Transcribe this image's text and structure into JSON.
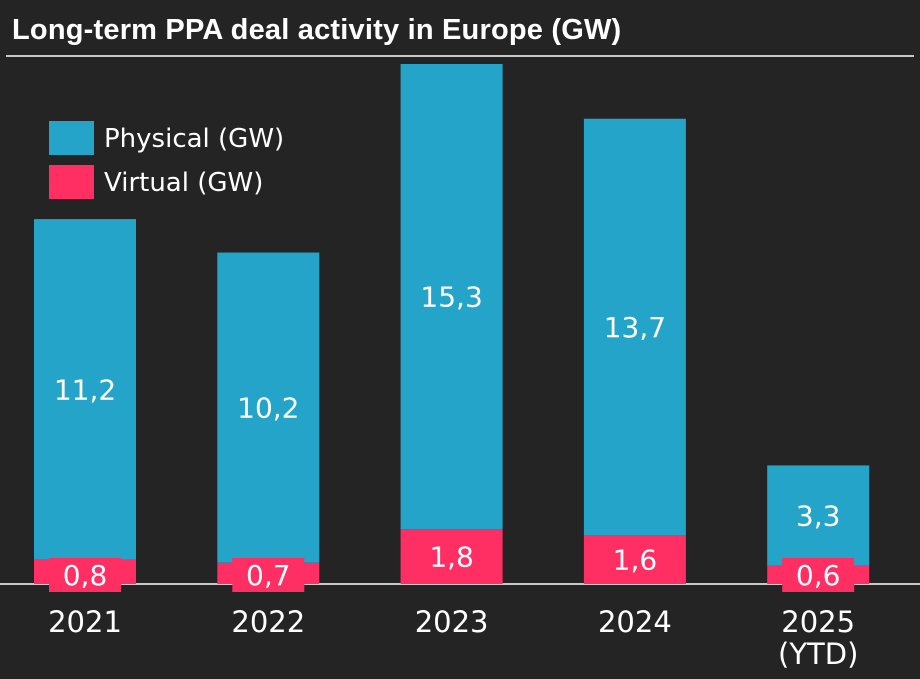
{
  "chart_data": {
    "type": "bar",
    "stacked": true,
    "title": "Long-term PPA deal activity in Europe (GW)",
    "categories": [
      {
        "label": "2021",
        "sub": ""
      },
      {
        "label": "2022",
        "sub": ""
      },
      {
        "label": "2023",
        "sub": ""
      },
      {
        "label": "2024",
        "sub": ""
      },
      {
        "label": "2025",
        "sub": "(YTD)"
      }
    ],
    "series": [
      {
        "name": "Virtual (GW)",
        "color": "#ff2e63",
        "values": [
          0.8,
          0.7,
          1.8,
          1.6,
          0.6
        ],
        "labels": [
          "0,8",
          "0,7",
          "1,8",
          "1,6",
          "0,6"
        ]
      },
      {
        "name": "Physical (GW)",
        "color": "#24a4c9",
        "values": [
          11.2,
          10.2,
          15.3,
          13.7,
          3.3
        ],
        "labels": [
          "11,2",
          "10,2",
          "15,3",
          "13,7",
          "3,3"
        ]
      }
    ],
    "legend": {
      "position": "top-left",
      "order": [
        "Physical (GW)",
        "Virtual (GW)"
      ]
    },
    "xlabel": "",
    "ylabel": "",
    "ylim": [
      0,
      17.1
    ],
    "grid": false
  }
}
